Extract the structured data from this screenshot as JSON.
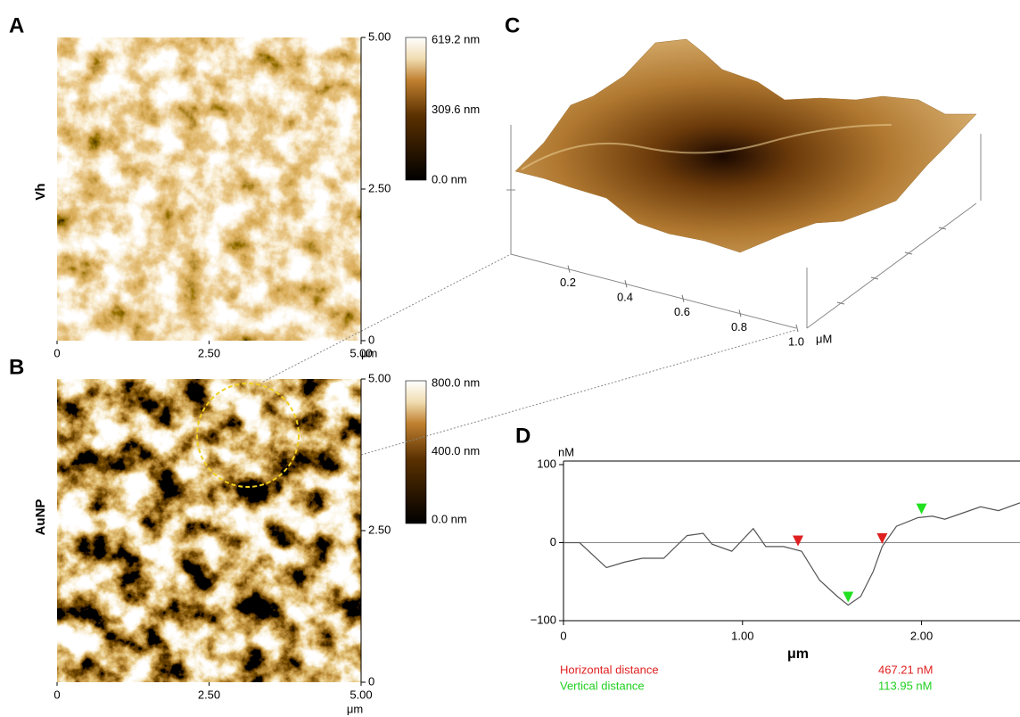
{
  "panel_a": {
    "letter": "A",
    "side_label": "Vh",
    "xlim": [
      0,
      5
    ],
    "xticks": [
      0,
      {
        "value": 2.5,
        "label": "2.50"
      },
      {
        "value": 5,
        "label": "5.00"
      }
    ],
    "x_unit": "μm",
    "ylim": [
      0,
      5
    ],
    "yticks": [
      0,
      {
        "value": 2.5,
        "label": "2.50"
      },
      {
        "value": 5,
        "label": "5.00"
      }
    ],
    "colorbar": [
      "619.2 nm",
      "309.6 nm",
      "0.0 nm"
    ]
  },
  "panel_b": {
    "letter": "B",
    "side_label": "AuNP",
    "xlim": [
      0,
      5
    ],
    "xticks": [
      0,
      {
        "value": 2.5,
        "label": "2.50"
      },
      {
        "value": 5,
        "label": "5.00"
      }
    ],
    "x_unit": "μm",
    "ylim": [
      0,
      5
    ],
    "yticks": [
      0,
      {
        "value": 2.5,
        "label": "2.50"
      },
      {
        "value": 5,
        "label": "5.00"
      }
    ],
    "colorbar": [
      "800.0 nm",
      "400.0 nm",
      "0.0 nm"
    ]
  },
  "panel_c": {
    "letter": "C",
    "xticks": [
      0.2,
      0.4,
      0.6,
      0.8,
      {
        "value": 1,
        "label": "1.0"
      }
    ],
    "x_unit": "μM"
  },
  "panel_d": {
    "letter": "D",
    "y_unit": "nM",
    "xlabel": "μm",
    "xlim": [
      0,
      2.55
    ],
    "ylim": [
      -100,
      100
    ],
    "xticks": [
      0,
      {
        "value": 1,
        "label": "1.00"
      },
      {
        "value": 2,
        "label": "2.00"
      }
    ],
    "yticks": [
      {
        "value": -100,
        "label": "−100"
      },
      0,
      100
    ],
    "x": [
      0,
      0.09,
      0.24,
      0.34,
      0.44,
      0.56,
      0.69,
      0.78,
      0.83,
      0.94,
      1.06,
      1.13,
      1.23,
      1.33,
      1.43,
      1.53,
      1.59,
      1.66,
      1.73,
      1.78,
      1.86,
      1.98,
      2.06,
      2.13,
      2.23,
      2.33,
      2.43,
      2.55
    ],
    "y": [
      0,
      0,
      -32,
      -25,
      -20,
      -20,
      9,
      12,
      -2,
      -11,
      18,
      -5,
      -5,
      -11,
      -48,
      -69,
      -80,
      -69,
      -37,
      -5,
      21,
      32,
      34,
      30,
      38,
      46,
      41,
      51
    ],
    "markers": [
      {
        "color": "#e02020",
        "x": 1.31,
        "y": -8
      },
      {
        "color": "#e02020",
        "x": 1.78,
        "y": -5
      },
      {
        "color": "#20e020",
        "x": 1.59,
        "y": -80
      },
      {
        "color": "#20e020",
        "x": 2.0,
        "y": 33
      }
    ],
    "measurements": [
      {
        "name": "Horizontal distance",
        "value": "467.21 nM",
        "color": "#e02020"
      },
      {
        "name": "Vertical distance",
        "value": "113.95 nM",
        "color": "#20d020"
      }
    ]
  }
}
